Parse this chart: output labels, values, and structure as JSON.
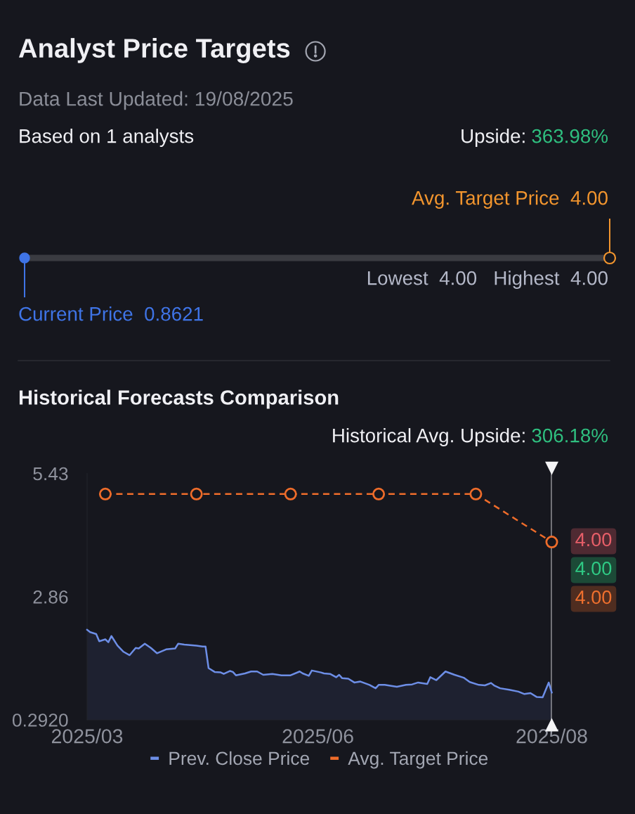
{
  "chart_data": [
    {
      "type": "other",
      "title": "Analyst Price Targets",
      "subtitle": "Data Last Updated: 19/08/2025",
      "annotations": [
        "Based on 1 analysts",
        "Upside:",
        "363.98%",
        "Avg. Target Price  4.00",
        "Lowest  4.00   Highest  4.00",
        "Current Price  0.8621"
      ]
    },
    {
      "type": "line",
      "title": "Historical Forecasts Comparison",
      "annotations": [
        "Historical Avg. Upside:",
        "306.18%",
        "4.00",
        "4.00",
        "4.00"
      ],
      "xlim": [
        "2025-03-19",
        "2025-08-19"
      ],
      "xticks": [
        {
          "value": "2025-03-19",
          "label": "2025/03"
        },
        {
          "value": "2025-06-03",
          "label": "2025/06"
        },
        {
          "value": "2025-08-19",
          "label": "2025/08"
        }
      ],
      "ylim": [
        0.292,
        5.43
      ],
      "yticks": [
        {
          "value": 0.292,
          "label": "0.2920"
        },
        2.86,
        5.43
      ],
      "legend": "bottom",
      "ref_lines": [
        {
          "axis": "x",
          "value": "2025-08-19",
          "color": "#bdbdc2"
        }
      ],
      "series": [
        {
          "name": "Prev. Close Price",
          "type": "area",
          "color": "#6d8ee6",
          "x": [
            "2025-03-19",
            "2025-03-20",
            "2025-03-22",
            "2025-03-23",
            "2025-03-25",
            "2025-03-26",
            "2025-03-27",
            "2025-03-29",
            "2025-03-31",
            "2025-04-02",
            "2025-04-04",
            "2025-04-05",
            "2025-04-07",
            "2025-04-09",
            "2025-04-11",
            "2025-04-14",
            "2025-04-17",
            "2025-04-18",
            "2025-04-20",
            "2025-04-24",
            "2025-04-26",
            "2025-04-27",
            "2025-04-28",
            "2025-04-30",
            "2025-05-02",
            "2025-05-03",
            "2025-05-05",
            "2025-05-06",
            "2025-05-07",
            "2025-05-10",
            "2025-05-12",
            "2025-05-14",
            "2025-05-16",
            "2025-05-19",
            "2025-05-22",
            "2025-05-25",
            "2025-05-28",
            "2025-05-29",
            "2025-05-31",
            "2025-06-01",
            "2025-06-04",
            "2025-06-05",
            "2025-06-07",
            "2025-06-09",
            "2025-06-10",
            "2025-06-11",
            "2025-06-13",
            "2025-06-15",
            "2025-06-17",
            "2025-06-20",
            "2025-06-22",
            "2025-06-23",
            "2025-06-25",
            "2025-06-29",
            "2025-07-02",
            "2025-07-04",
            "2025-07-06",
            "2025-07-09",
            "2025-07-10",
            "2025-07-12",
            "2025-07-15",
            "2025-07-18",
            "2025-07-21",
            "2025-07-23",
            "2025-07-26",
            "2025-07-28",
            "2025-07-30",
            "2025-07-31",
            "2025-08-02",
            "2025-08-05",
            "2025-08-08",
            "2025-08-10",
            "2025-08-12",
            "2025-08-14",
            "2025-08-16",
            "2025-08-18",
            "2025-08-19"
          ],
          "values": [
            2.17,
            2.12,
            2.08,
            1.93,
            1.97,
            1.91,
            2.04,
            1.84,
            1.71,
            1.64,
            1.79,
            1.78,
            1.88,
            1.79,
            1.68,
            1.76,
            1.78,
            1.88,
            1.86,
            1.84,
            1.82,
            1.82,
            1.37,
            1.29,
            1.28,
            1.25,
            1.31,
            1.29,
            1.22,
            1.26,
            1.3,
            1.3,
            1.23,
            1.25,
            1.22,
            1.22,
            1.3,
            1.26,
            1.21,
            1.32,
            1.28,
            1.26,
            1.25,
            1.18,
            1.23,
            1.16,
            1.15,
            1.07,
            1.09,
            1.02,
            0.95,
            1.02,
            1.02,
            0.98,
            1.02,
            1.03,
            1.07,
            1.04,
            1.18,
            1.12,
            1.3,
            1.23,
            1.17,
            1.08,
            1.02,
            1.01,
            1.06,
            1.01,
            0.95,
            0.92,
            0.88,
            0.83,
            0.85,
            0.77,
            0.76,
            1.07,
            0.86
          ]
        },
        {
          "name": "Avg. Target Price",
          "color": "#ee6c2a",
          "marker": "circle",
          "line_style": "dashed",
          "x": [
            "2025-03-25",
            "2025-04-24",
            "2025-05-25",
            "2025-06-23",
            "2025-07-25",
            "2025-08-19"
          ],
          "values": [
            5.0,
            5.0,
            5.0,
            5.0,
            5.0,
            4.0
          ]
        }
      ]
    }
  ]
}
